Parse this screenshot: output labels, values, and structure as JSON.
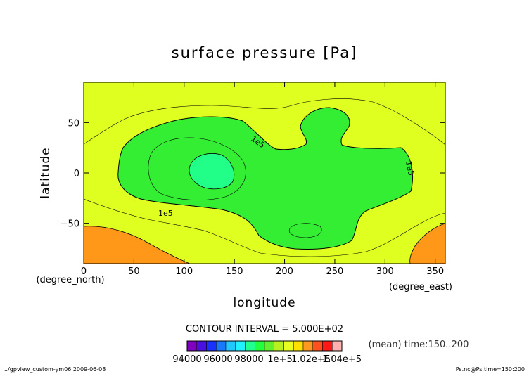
{
  "chart_data": {
    "type": "contour",
    "title": "surface pressure [Pa]",
    "xlabel": "longitude",
    "ylabel": "latitude",
    "x_unit": "(degree_east)",
    "y_unit": "(degree_north)",
    "xlim": [
      0,
      360
    ],
    "ylim": [
      -90,
      90
    ],
    "x_ticks": [
      "0",
      "50",
      "100",
      "150",
      "200",
      "250",
      "300",
      "350"
    ],
    "y_ticks": [
      "50",
      "0",
      "−50"
    ],
    "contour_interval": "CONTOUR INTERVAL = 5.000E+02",
    "contour_labels": [
      "1e5",
      "1e5",
      "1e5"
    ],
    "time_note": "(mean) time:150..200",
    "colorbar": {
      "tick_labels": [
        "94000",
        "96000",
        "98000",
        "1e+5",
        "1.02e+5",
        "1.04e+5"
      ],
      "colors": [
        "#8000c0",
        "#4a10e0",
        "#1a30ff",
        "#1a78ff",
        "#20c8ff",
        "#20f0ff",
        "#20ff90",
        "#20ff40",
        "#60f030",
        "#b8f020",
        "#e8ff20",
        "#ffe000",
        "#ff9820",
        "#ff5020",
        "#ff1818",
        "#ffb0b0"
      ],
      "tick_values": [
        94000,
        96000,
        98000,
        100000,
        102000,
        104000
      ],
      "range": [
        94000,
        104000
      ]
    },
    "colors": {
      "yellow": "#deff20",
      "green": "#33ee33",
      "light_green": "#22ff88",
      "orange": "#ff9818"
    },
    "grid": false
  },
  "footer": {
    "left": "../gpview_custom-ym06  2009-06-08",
    "right": "Ps.nc@Ps,time=150:200"
  }
}
